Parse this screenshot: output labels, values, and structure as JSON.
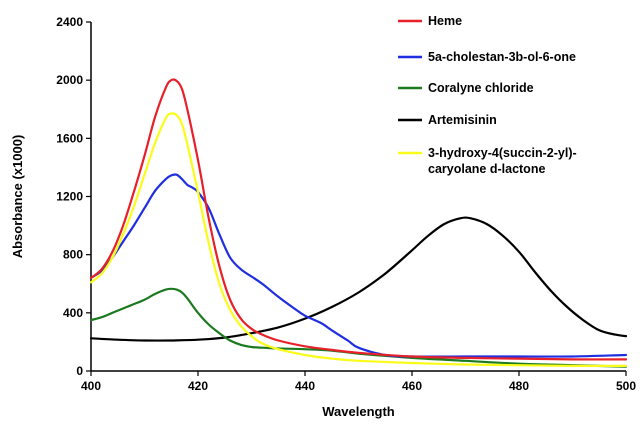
{
  "chart_data": {
    "type": "line",
    "xlabel": "Wavelength",
    "ylabel": "Absorbance (x1000)",
    "xlim": [
      400,
      500
    ],
    "ylim": [
      0,
      2400
    ],
    "xticks": [
      400,
      420,
      440,
      460,
      480,
      500
    ],
    "yticks": [
      0,
      400,
      800,
      1200,
      1600,
      2000,
      2400
    ],
    "grid": false,
    "legend_position": "top-right",
    "series": [
      {
        "name": "Heme",
        "color": "#e8202a",
        "x": [
          400,
          402,
          404,
          406,
          408,
          410,
          412,
          414,
          415,
          416,
          417,
          418,
          420,
          422,
          424,
          426,
          428,
          430,
          432,
          435,
          440,
          445,
          450,
          460,
          470,
          480,
          490,
          500
        ],
        "y": [
          640,
          700,
          820,
          1000,
          1230,
          1480,
          1750,
          1950,
          2000,
          1995,
          1940,
          1800,
          1450,
          1050,
          720,
          490,
          360,
          290,
          250,
          210,
          170,
          145,
          125,
          100,
          90,
          85,
          80,
          80
        ]
      },
      {
        "name": "5a-cholestan-3b-ol-6-one",
        "color": "#1f2ee0",
        "x": [
          400,
          402,
          404,
          406,
          408,
          410,
          412,
          414,
          415,
          416,
          417,
          418,
          419,
          420,
          422,
          424,
          426,
          428,
          430,
          432,
          435,
          438,
          440,
          443,
          445,
          448,
          450,
          455,
          460,
          470,
          480,
          490,
          500
        ],
        "y": [
          640,
          690,
          780,
          890,
          1000,
          1120,
          1240,
          1320,
          1345,
          1350,
          1320,
          1280,
          1260,
          1230,
          1120,
          940,
          780,
          700,
          650,
          600,
          510,
          430,
          380,
          330,
          280,
          210,
          160,
          110,
          100,
          100,
          100,
          100,
          110
        ]
      },
      {
        "name": "Coralyne chloride",
        "color": "#1b7a1f",
        "x": [
          400,
          402,
          404,
          406,
          408,
          410,
          412,
          414,
          415,
          416,
          417,
          418,
          420,
          422,
          424,
          426,
          428,
          430,
          432,
          435,
          440,
          445,
          450,
          460,
          470,
          480,
          490,
          500
        ],
        "y": [
          350,
          370,
          400,
          430,
          460,
          490,
          530,
          560,
          565,
          560,
          540,
          500,
          400,
          320,
          260,
          210,
          180,
          165,
          160,
          155,
          150,
          140,
          120,
          90,
          70,
          50,
          40,
          30
        ]
      },
      {
        "name": "Artemisinin",
        "color": "#000000",
        "x": [
          400,
          405,
          410,
          415,
          420,
          425,
          430,
          435,
          440,
          445,
          450,
          455,
          460,
          463,
          466,
          469,
          471,
          474,
          477,
          480,
          483,
          486,
          489,
          492,
          495,
          498,
          500
        ],
        "y": [
          225,
          215,
          210,
          210,
          215,
          230,
          260,
          300,
          360,
          440,
          540,
          670,
          830,
          930,
          1010,
          1050,
          1050,
          1010,
          930,
          820,
          680,
          550,
          440,
          350,
          280,
          250,
          240
        ]
      },
      {
        "name": "3-hydroxy-4(succin-2-yl)-caryolane d-lactone",
        "color": "#fbfb1a",
        "x": [
          400,
          402,
          404,
          406,
          408,
          410,
          412,
          414,
          415,
          416,
          417,
          418,
          420,
          422,
          424,
          426,
          428,
          430,
          432,
          435,
          440,
          445,
          450,
          460,
          470,
          480,
          490,
          500
        ],
        "y": [
          610,
          670,
          780,
          940,
          1130,
          1350,
          1570,
          1740,
          1770,
          1760,
          1700,
          1560,
          1230,
          880,
          600,
          420,
          310,
          240,
          190,
          150,
          110,
          85,
          70,
          55,
          45,
          40,
          35,
          35
        ]
      }
    ]
  }
}
